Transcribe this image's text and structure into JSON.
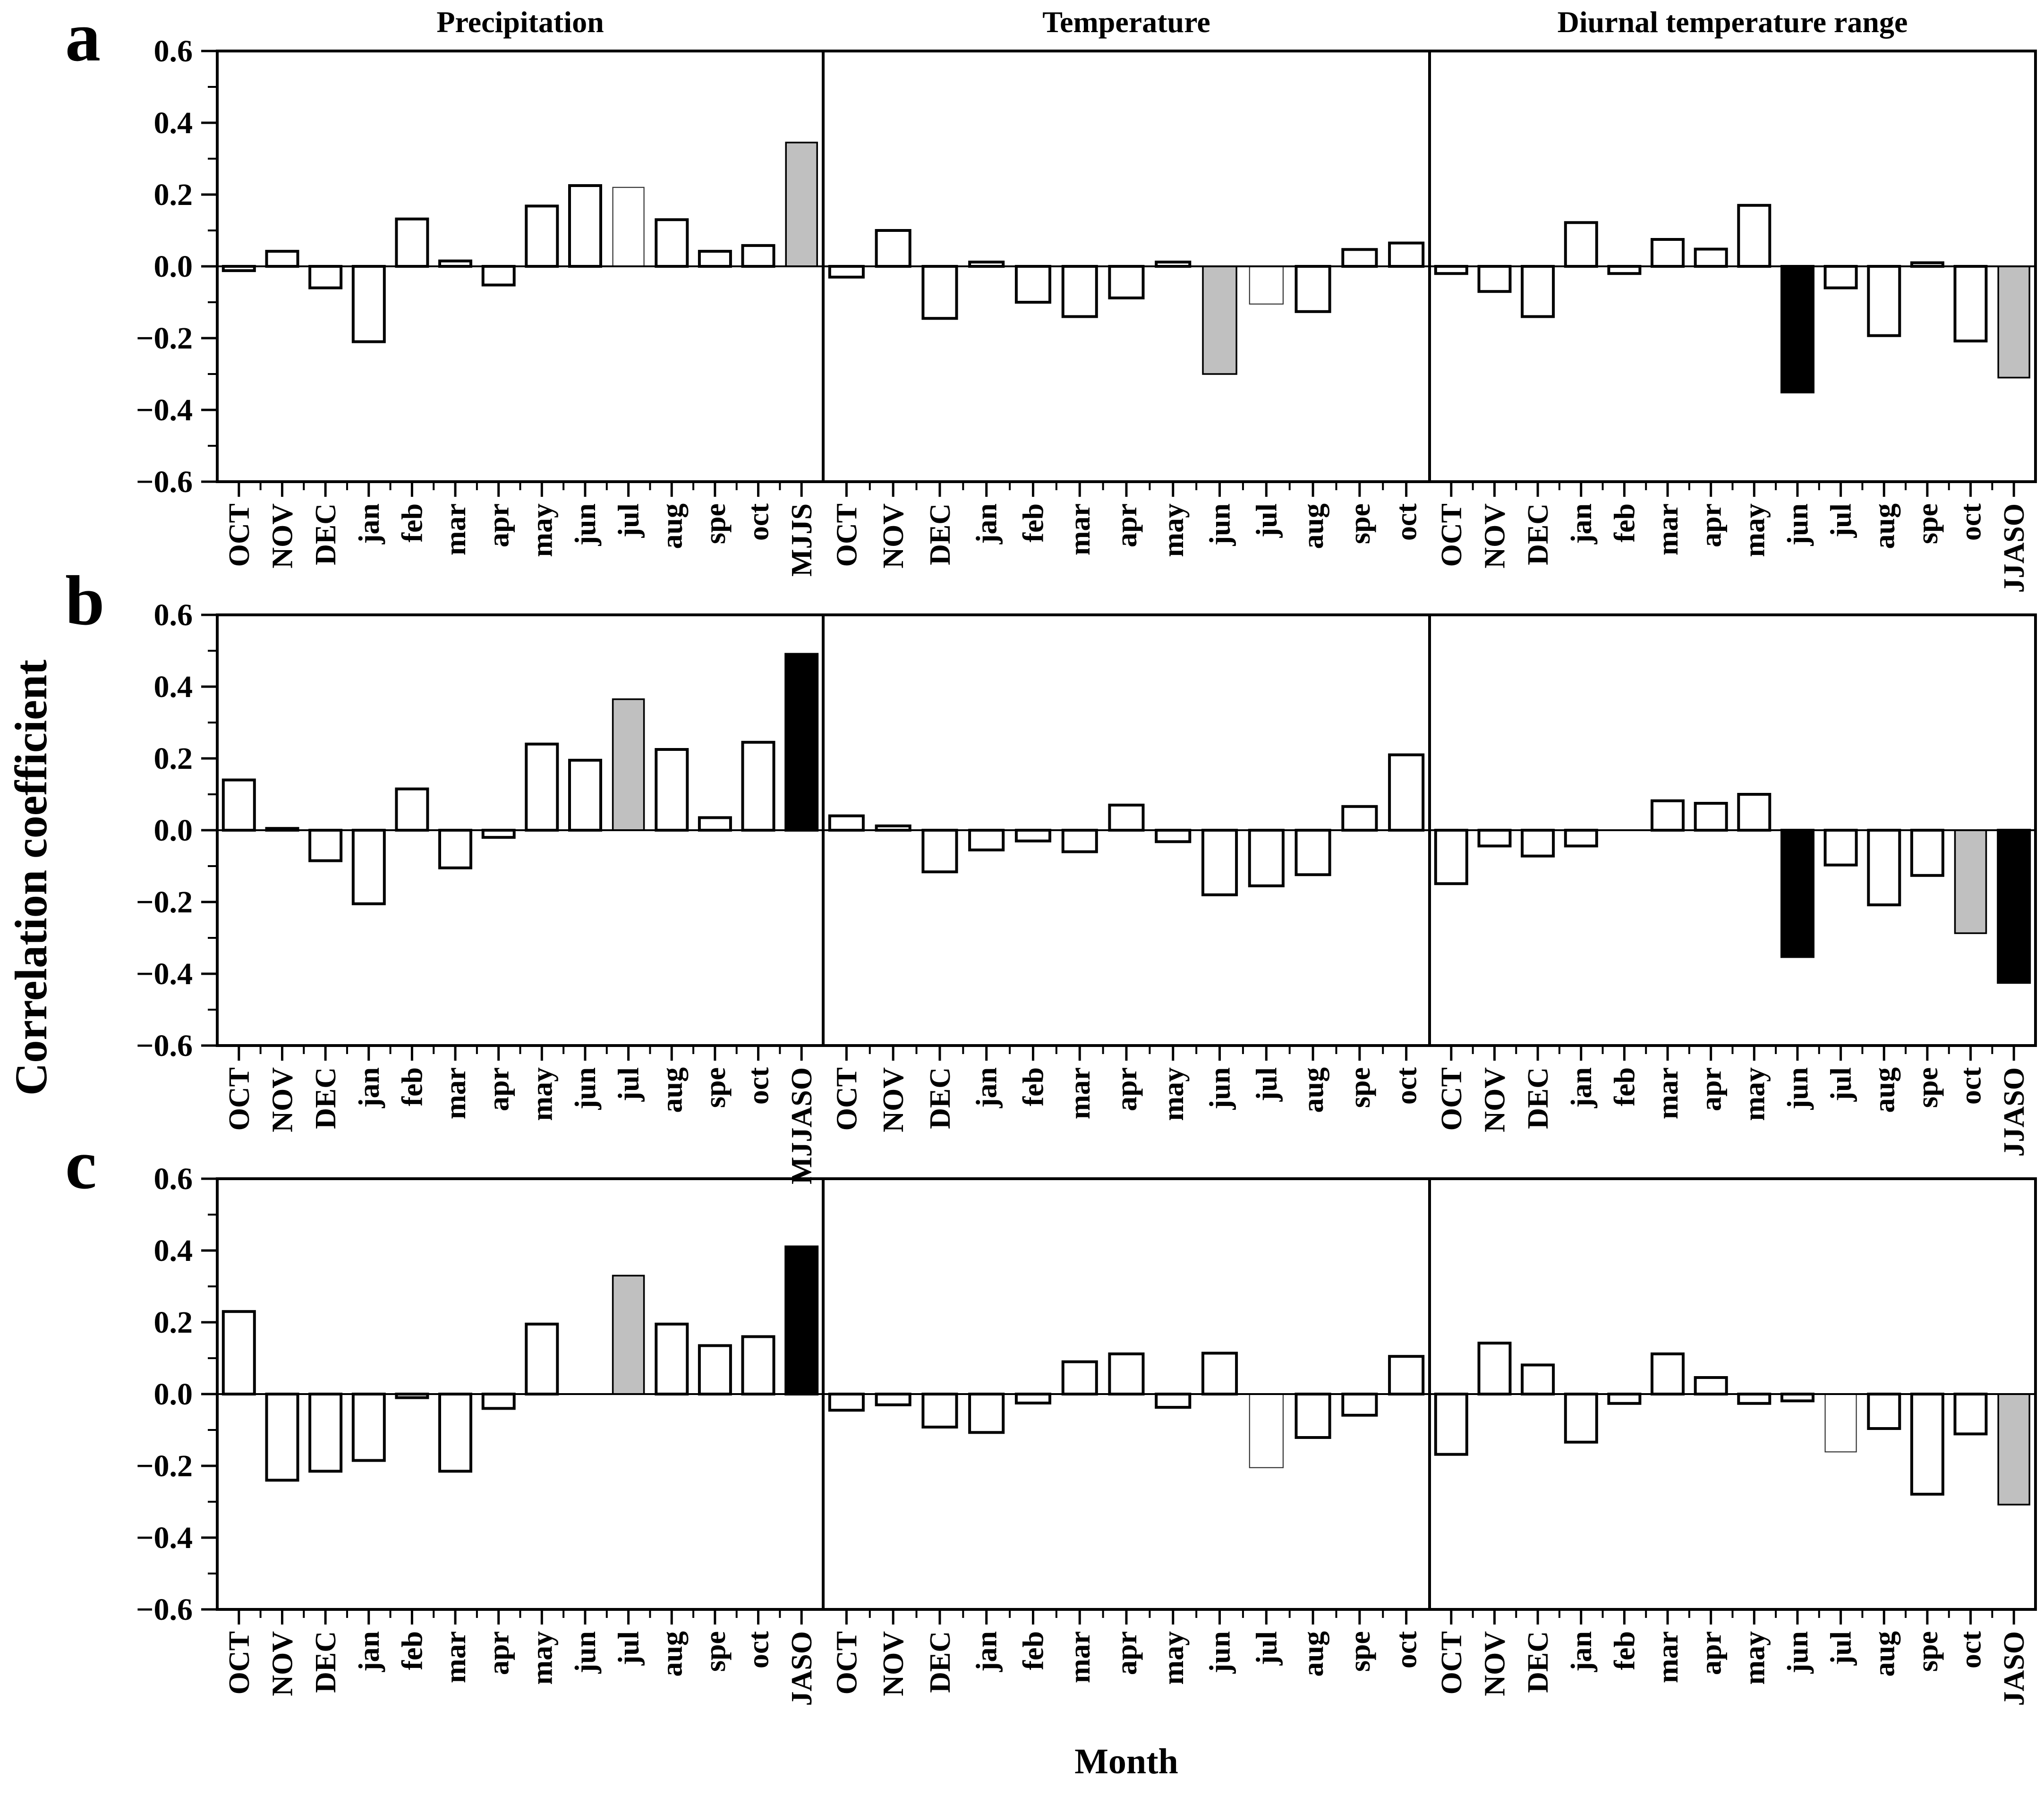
{
  "labels": {
    "y_axis": "Correlation coefficient",
    "x_axis": "Month"
  },
  "columns": [
    {
      "title": "Precipitation"
    },
    {
      "title": "Temperature"
    },
    {
      "title": "Diurnal temperature range"
    }
  ],
  "rows": [
    {
      "letter": "a"
    },
    {
      "letter": "b"
    },
    {
      "letter": "c"
    }
  ],
  "colors": {
    "bar_white": "#ffffff",
    "bar_gray": "#c0c0c0",
    "bar_black": "#000000",
    "stroke": "#000000",
    "thin_stroke": "#333333"
  },
  "axis": {
    "ylim": [
      -0.6,
      0.6
    ],
    "ytick_values": [
      0.6,
      0.4,
      0.2,
      0.0,
      -0.2,
      -0.4,
      -0.6
    ],
    "ytick_labels": [
      "0.6",
      "0.4",
      "0.2",
      "0.0",
      "−0.2",
      "−0.4",
      "−0.6"
    ],
    "minor_tick_values": [
      0.5,
      0.3,
      0.1,
      -0.1,
      -0.3,
      -0.5
    ],
    "grid": false
  },
  "chart_data": [
    {
      "type": "bar",
      "row": 0,
      "col": 0,
      "panel": "a-precipitation",
      "categories": [
        "OCT",
        "NOV",
        "DEC",
        "jan",
        "feb",
        "mar",
        "apr",
        "may",
        "jun",
        "jul",
        "aug",
        "spe",
        "oct",
        "MJJS"
      ],
      "values": [
        -0.012,
        0.042,
        -0.06,
        -0.21,
        0.132,
        0.015,
        -0.052,
        0.168,
        0.225,
        0.22,
        0.13,
        0.042,
        0.058,
        0.345
      ],
      "bar_styles": [
        "w",
        "w",
        "w",
        "w",
        "w",
        "w",
        "w",
        "w",
        "w",
        "t",
        "w",
        "w",
        "w",
        "g"
      ]
    },
    {
      "type": "bar",
      "row": 0,
      "col": 1,
      "panel": "a-temperature",
      "categories": [
        "OCT",
        "NOV",
        "DEC",
        "jan",
        "feb",
        "mar",
        "apr",
        "may",
        "jun",
        "jul",
        "aug",
        "spe",
        "oct"
      ],
      "values": [
        -0.03,
        0.1,
        -0.145,
        0.012,
        -0.1,
        -0.14,
        -0.088,
        0.012,
        -0.3,
        -0.105,
        -0.126,
        0.047,
        0.065
      ],
      "bar_styles": [
        "w",
        "w",
        "w",
        "w",
        "w",
        "w",
        "w",
        "w",
        "g",
        "t",
        "w",
        "w",
        "w"
      ]
    },
    {
      "type": "bar",
      "row": 0,
      "col": 2,
      "panel": "a-diurnal-temperature-range",
      "categories": [
        "OCT",
        "NOV",
        "DEC",
        "jan",
        "feb",
        "mar",
        "apr",
        "may",
        "jun",
        "jul",
        "aug",
        "spe",
        "oct",
        "JJASO"
      ],
      "values": [
        -0.02,
        -0.07,
        -0.14,
        0.122,
        -0.02,
        0.075,
        0.048,
        0.17,
        -0.35,
        -0.06,
        -0.193,
        0.01,
        -0.208,
        -0.31
      ],
      "bar_styles": [
        "w",
        "w",
        "w",
        "w",
        "w",
        "w",
        "w",
        "w",
        "k",
        "w",
        "w",
        "w",
        "w",
        "g"
      ]
    },
    {
      "type": "bar",
      "row": 1,
      "col": 0,
      "panel": "b-precipitation",
      "categories": [
        "OCT",
        "NOV",
        "DEC",
        "jan",
        "feb",
        "mar",
        "apr",
        "may",
        "jun",
        "jul",
        "aug",
        "spe",
        "oct",
        "MJJASO"
      ],
      "values": [
        0.14,
        0.005,
        -0.085,
        -0.205,
        0.115,
        -0.105,
        -0.02,
        0.24,
        0.195,
        0.365,
        0.225,
        0.035,
        0.245,
        0.49
      ],
      "bar_styles": [
        "w",
        "w",
        "w",
        "w",
        "w",
        "w",
        "w",
        "w",
        "w",
        "g",
        "w",
        "w",
        "w",
        "k"
      ]
    },
    {
      "type": "bar",
      "row": 1,
      "col": 1,
      "panel": "b-temperature",
      "categories": [
        "OCT",
        "NOV",
        "DEC",
        "jan",
        "feb",
        "mar",
        "apr",
        "may",
        "jun",
        "jul",
        "aug",
        "spe",
        "oct"
      ],
      "values": [
        0.04,
        0.012,
        -0.116,
        -0.055,
        -0.03,
        -0.06,
        0.07,
        -0.032,
        -0.18,
        -0.155,
        -0.124,
        0.066,
        0.21
      ],
      "bar_styles": [
        "w",
        "w",
        "w",
        "w",
        "w",
        "w",
        "w",
        "w",
        "w",
        "w",
        "w",
        "w",
        "w"
      ]
    },
    {
      "type": "bar",
      "row": 1,
      "col": 2,
      "panel": "b-diurnal-temperature-range",
      "categories": [
        "OCT",
        "NOV",
        "DEC",
        "jan",
        "feb",
        "mar",
        "apr",
        "may",
        "jun",
        "jul",
        "aug",
        "spe",
        "oct",
        "JJASO"
      ],
      "values": [
        -0.149,
        -0.044,
        -0.072,
        -0.044,
        0,
        0.082,
        0.075,
        0.1,
        -0.352,
        -0.097,
        -0.208,
        -0.126,
        -0.287,
        -0.424
      ],
      "bar_styles": [
        "w",
        "w",
        "w",
        "w",
        "w",
        "w",
        "w",
        "w",
        "k",
        "w",
        "w",
        "w",
        "g",
        "k"
      ]
    },
    {
      "type": "bar",
      "row": 2,
      "col": 0,
      "panel": "c-precipitation",
      "categories": [
        "OCT",
        "NOV",
        "DEC",
        "jan",
        "feb",
        "mar",
        "apr",
        "may",
        "jun",
        "jul",
        "aug",
        "spe",
        "oct",
        "JASO"
      ],
      "values": [
        0.23,
        -0.24,
        -0.215,
        -0.185,
        -0.01,
        -0.215,
        -0.04,
        0.195,
        0,
        0.33,
        0.195,
        0.135,
        0.16,
        0.41
      ],
      "bar_styles": [
        "w",
        "w",
        "w",
        "w",
        "w",
        "w",
        "w",
        "w",
        "w",
        "g",
        "w",
        "w",
        "w",
        "k"
      ]
    },
    {
      "type": "bar",
      "row": 2,
      "col": 1,
      "panel": "c-temperature",
      "categories": [
        "OCT",
        "NOV",
        "DEC",
        "jan",
        "feb",
        "mar",
        "apr",
        "may",
        "jun",
        "jul",
        "aug",
        "spe",
        "oct"
      ],
      "values": [
        -0.045,
        -0.03,
        -0.092,
        -0.107,
        -0.025,
        0.09,
        0.112,
        -0.037,
        0.114,
        -0.205,
        -0.121,
        -0.059,
        0.105
      ],
      "bar_styles": [
        "w",
        "w",
        "w",
        "w",
        "w",
        "w",
        "w",
        "w",
        "w",
        "t",
        "w",
        "w",
        "w"
      ]
    },
    {
      "type": "bar",
      "row": 2,
      "col": 2,
      "panel": "c-diurnal-temperature-range",
      "categories": [
        "OCT",
        "NOV",
        "DEC",
        "jan",
        "feb",
        "mar",
        "apr",
        "may",
        "jun",
        "jul",
        "aug",
        "spe",
        "oct",
        "JASO"
      ],
      "values": [
        -0.168,
        0.142,
        0.081,
        -0.134,
        -0.026,
        0.112,
        0.046,
        -0.026,
        -0.019,
        -0.161,
        -0.096,
        -0.279,
        -0.111,
        -0.308
      ],
      "bar_styles": [
        "w",
        "w",
        "w",
        "w",
        "w",
        "w",
        "w",
        "w",
        "w",
        "t",
        "w",
        "w",
        "w",
        "g"
      ]
    }
  ]
}
